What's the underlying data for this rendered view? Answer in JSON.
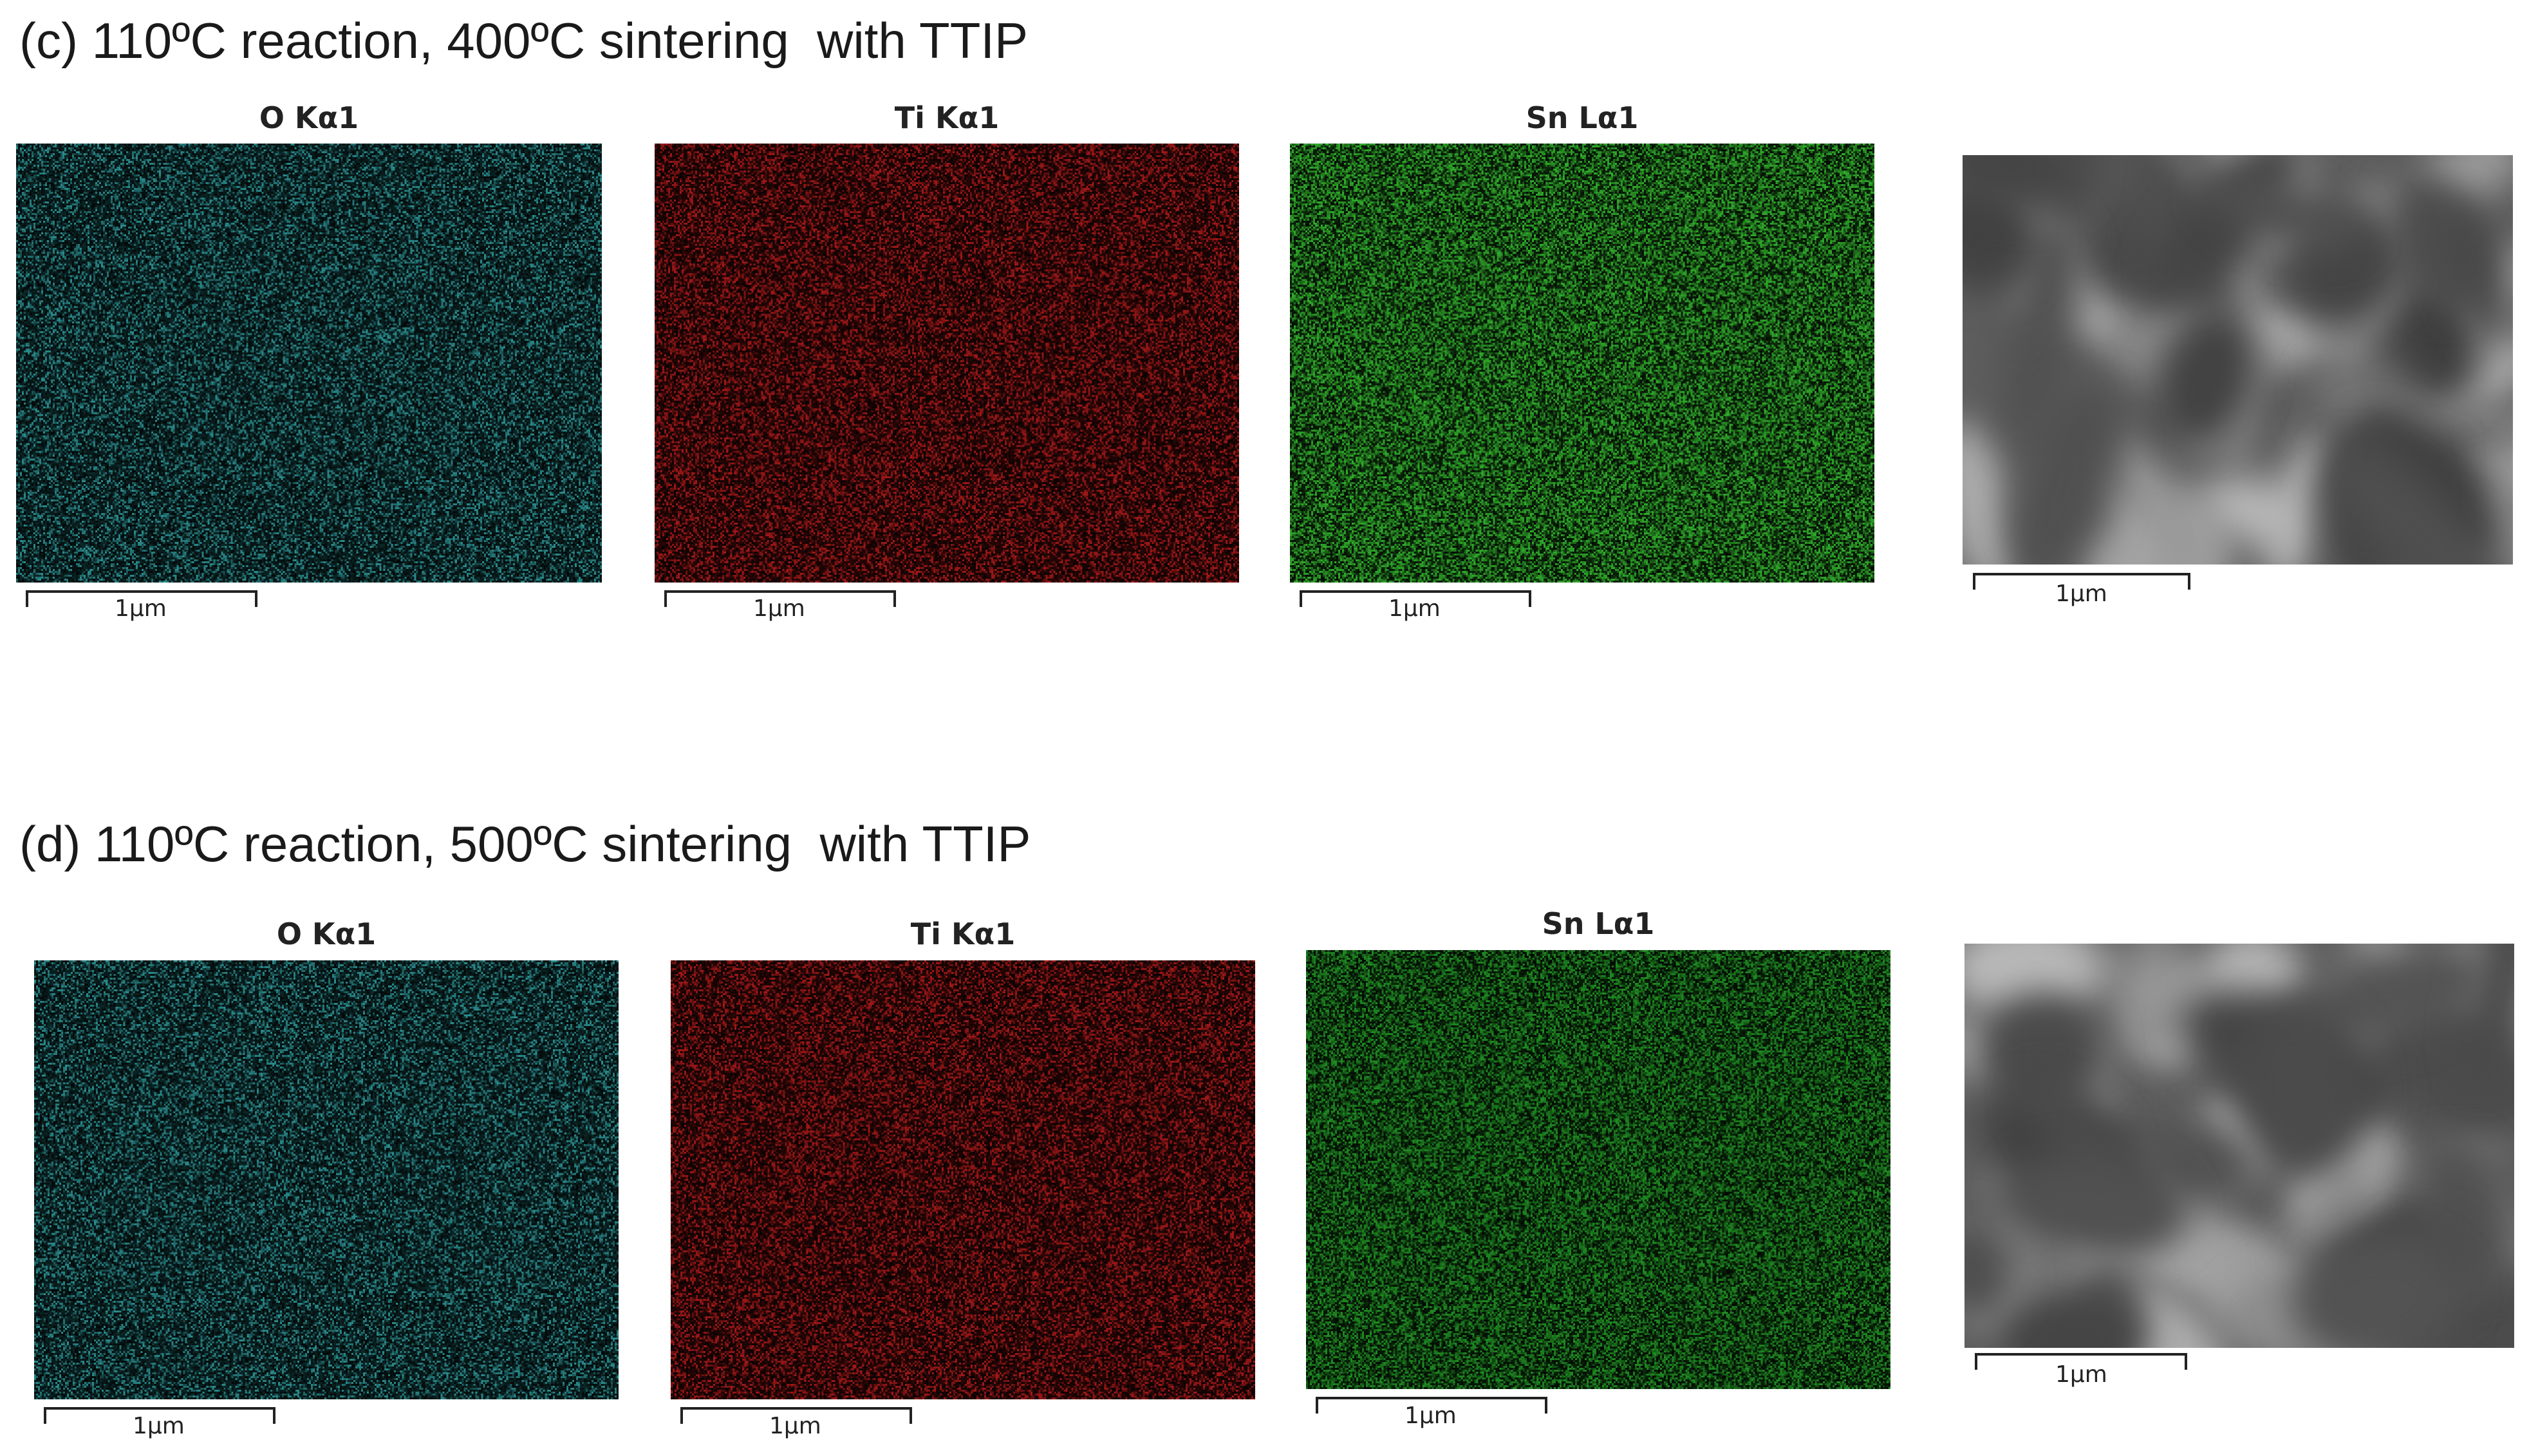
{
  "rows": [
    {
      "title": "(c) 110ºC reaction, 400ºC sintering  with TTIP",
      "panels": [
        {
          "label": "O Kα1",
          "scale": "1μm"
        },
        {
          "label": "Ti Kα1",
          "scale": "1μm"
        },
        {
          "label": "Sn Lα1",
          "scale": "1μm"
        },
        {
          "label": "",
          "scale": "1μm"
        }
      ]
    },
    {
      "title": "(d) 110ºC reaction, 500ºC sintering  with TTIP",
      "panels": [
        {
          "label": "O Kα1",
          "scale": "1μm"
        },
        {
          "label": "Ti Kα1",
          "scale": "1μm"
        },
        {
          "label": "Sn Lα1",
          "scale": "1μm"
        },
        {
          "label": "",
          "scale": "1μm"
        }
      ]
    }
  ],
  "colors": {
    "oxygen": "#2a8a8c",
    "titanium": "#a01818",
    "tin_c": "#2fa82a",
    "tin_d": "#1f8a22",
    "sem": "#6e6e6e"
  },
  "icons": [
    "eds-map-oxygen",
    "eds-map-titanium",
    "eds-map-tin",
    "sem-image"
  ]
}
